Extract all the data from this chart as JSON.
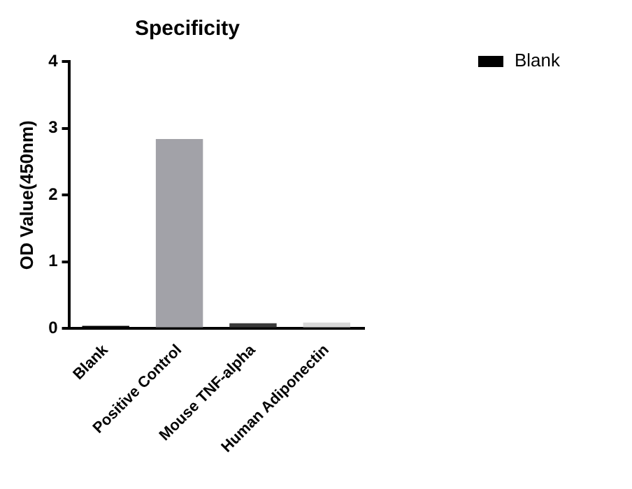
{
  "chart_data": {
    "type": "bar",
    "title": "Specificity",
    "ylabel": "OD Value(450nm)",
    "categories": [
      "Blank",
      "Positive Control",
      "Mouse TNF-alpha",
      "Human Adiponectin"
    ],
    "series": [
      {
        "name": "Blank",
        "color": "#000000",
        "colors": [
          "#000000",
          "#a2a2a8",
          "#3a3a3a",
          "#d8d8d8"
        ],
        "values": [
          0.04,
          2.84,
          0.08,
          0.09
        ]
      }
    ],
    "ylim": [
      0,
      4
    ],
    "yticks": [
      0,
      1,
      2,
      3,
      4
    ],
    "grid": false,
    "legend": "top right"
  }
}
